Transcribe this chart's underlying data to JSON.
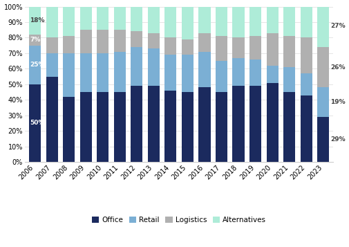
{
  "years": [
    2006,
    2007,
    2008,
    2009,
    2010,
    2011,
    2012,
    2013,
    2014,
    2015,
    2016,
    2017,
    2018,
    2019,
    2020,
    2021,
    2022,
    2023
  ],
  "office": [
    50,
    55,
    42,
    45,
    45,
    45,
    49,
    49,
    46,
    45,
    48,
    45,
    49,
    49,
    51,
    45,
    43,
    29
  ],
  "retail": [
    25,
    15,
    28,
    25,
    25,
    26,
    25,
    24,
    23,
    24,
    23,
    20,
    18,
    17,
    11,
    16,
    14,
    19
  ],
  "logistics": [
    7,
    10,
    11,
    15,
    15,
    14,
    10,
    10,
    11,
    10,
    12,
    16,
    13,
    15,
    21,
    20,
    23,
    26
  ],
  "alternatives": [
    18,
    20,
    19,
    15,
    15,
    15,
    16,
    17,
    20,
    21,
    17,
    19,
    20,
    19,
    17,
    19,
    20,
    27
  ],
  "colors": {
    "office": "#1b2a5e",
    "retail": "#7bafd4",
    "logistics": "#b0b0b0",
    "alternatives": "#aeecd8"
  },
  "annotations_2006": [
    {
      "label": "50%",
      "segment": "office",
      "color": "white"
    },
    {
      "label": "25%",
      "segment": "retail",
      "color": "white"
    },
    {
      "label": "7%",
      "segment": "logistics",
      "color": "white"
    },
    {
      "label": "18%",
      "segment": "alternatives",
      "color": "#444444"
    }
  ],
  "annotations_2023": [
    {
      "label": "29%",
      "segment": "office",
      "color": "#444444"
    },
    {
      "label": "19%",
      "segment": "retail",
      "color": "#444444"
    },
    {
      "label": "26%",
      "segment": "logistics",
      "color": "#444444"
    },
    {
      "label": "27%",
      "segment": "alternatives",
      "color": "#444444"
    }
  ],
  "yticks": [
    0,
    10,
    20,
    30,
    40,
    50,
    60,
    70,
    80,
    90,
    100
  ],
  "legend_labels": [
    "Office",
    "Retail",
    "Logistics",
    "Alternatives"
  ],
  "background_color": "#ffffff",
  "grid_color": "#e0e0e0",
  "figsize": [
    5.06,
    3.57
  ],
  "dpi": 100
}
